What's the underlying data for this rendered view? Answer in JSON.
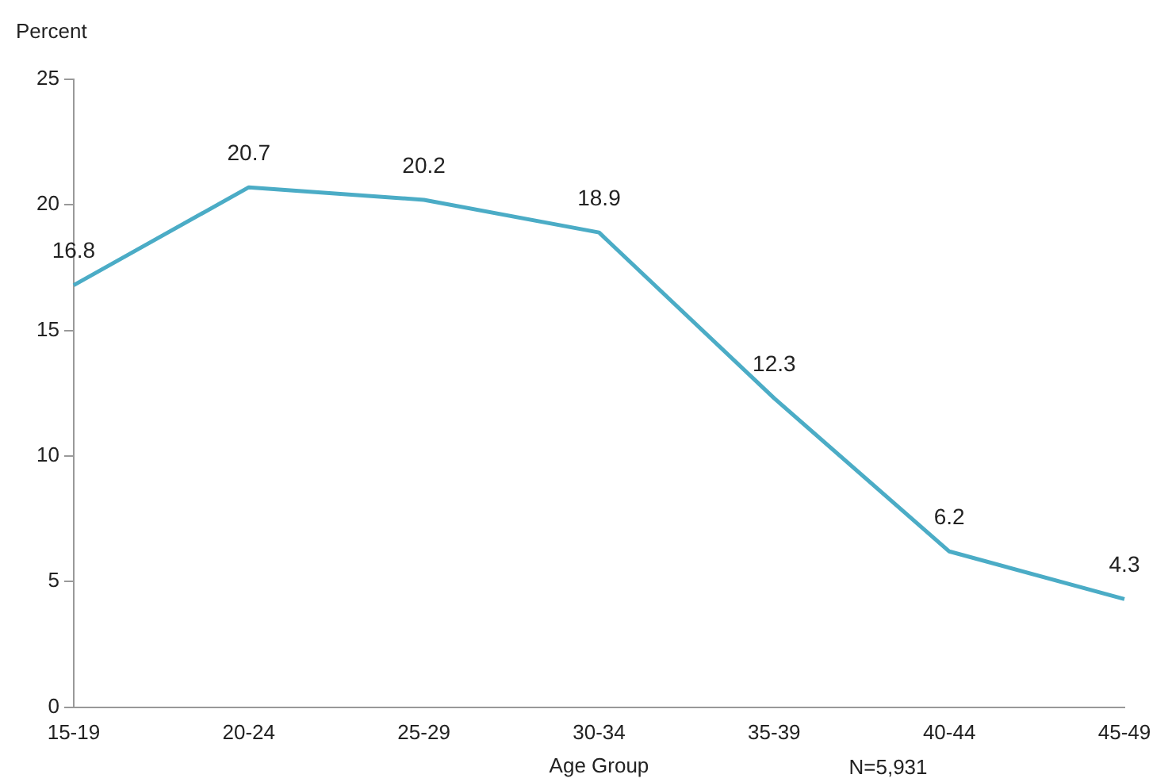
{
  "chart_data": {
    "type": "line",
    "ylabel": "Percent",
    "xlabel": "Age Group",
    "annotations": [
      "N=5,931"
    ],
    "categories": [
      "15-19",
      "20-24",
      "25-29",
      "30-34",
      "35-39",
      "40-44",
      "45-49"
    ],
    "series": [
      {
        "color": "#4bacc6",
        "values": [
          16.8,
          20.7,
          20.2,
          18.9,
          12.3,
          6.2,
          4.3
        ]
      }
    ],
    "ylim": [
      0,
      25
    ],
    "yticks": [
      0,
      5,
      10,
      15,
      20,
      25
    ],
    "grid": false,
    "legend": false,
    "data_labels": true,
    "marker": "none",
    "line_style": "solid"
  }
}
